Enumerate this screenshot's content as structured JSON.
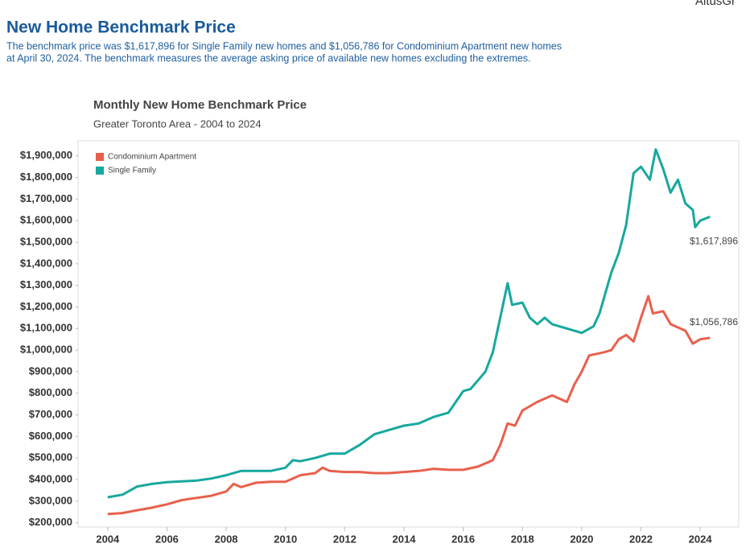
{
  "header": {
    "title": "New Home Benchmark Price",
    "description": [
      "The benchmark price was $1,617,896 for Single Family new homes and $1,056,786 for Condominium Apartment new homes",
      "at April 30, 2024. The benchmark measures the average asking price of available new homes excluding the extremes."
    ]
  },
  "logo": "AltusGr",
  "chart_data": {
    "type": "line",
    "title": "Monthly New Home Benchmark Price",
    "subtitle": "Greater Toronto Area - 2004 to 2024",
    "legend": "top-left",
    "xlim": [
      2003,
      2025.3
    ],
    "xticks": [
      2004,
      2006,
      2008,
      2010,
      2012,
      2014,
      2016,
      2018,
      2020,
      2022,
      2024
    ],
    "ylim": [
      180000,
      1970000
    ],
    "yticks": [
      {
        "value": 200000,
        "label": "$200,000"
      },
      {
        "value": 300000,
        "label": "$300,000"
      },
      {
        "value": 400000,
        "label": "$400,000"
      },
      {
        "value": 500000,
        "label": "$500,000"
      },
      {
        "value": 600000,
        "label": "$600,000"
      },
      {
        "value": 700000,
        "label": "$700,000"
      },
      {
        "value": 800000,
        "label": "$800,000"
      },
      {
        "value": 900000,
        "label": "$900,000"
      },
      {
        "value": 1000000,
        "label": "$1,000,000"
      },
      {
        "value": 1100000,
        "label": "$1,100,000"
      },
      {
        "value": 1200000,
        "label": "$1,200,000"
      },
      {
        "value": 1300000,
        "label": "$1,300,000"
      },
      {
        "value": 1400000,
        "label": "$1,400,000"
      },
      {
        "value": 1500000,
        "label": "$1,500,000"
      },
      {
        "value": 1600000,
        "label": "$1,600,000"
      },
      {
        "value": 1700000,
        "label": "$1,700,000"
      },
      {
        "value": 1800000,
        "label": "$1,800,000"
      },
      {
        "value": 1900000,
        "label": "$1,900,000"
      }
    ],
    "series": [
      {
        "name": "Condominium Apartment",
        "color": "#e8604c",
        "x": [
          2004,
          2004.5,
          2005,
          2005.5,
          2006,
          2006.5,
          2007,
          2007.5,
          2008,
          2008.25,
          2008.5,
          2009,
          2009.5,
          2010,
          2010.5,
          2011,
          2011.25,
          2011.5,
          2012,
          2012.5,
          2013,
          2013.5,
          2014,
          2014.5,
          2015,
          2015.5,
          2016,
          2016.5,
          2017,
          2017.25,
          2017.5,
          2017.75,
          2018,
          2018.5,
          2019,
          2019.5,
          2019.75,
          2020,
          2020.25,
          2020.75,
          2021,
          2021.25,
          2021.5,
          2021.75,
          2022,
          2022.25,
          2022.4,
          2022.75,
          2023,
          2023.5,
          2023.75,
          2024,
          2024.33
        ],
        "values": [
          240000,
          245000,
          258000,
          270000,
          285000,
          305000,
          315000,
          325000,
          345000,
          380000,
          365000,
          385000,
          390000,
          390000,
          420000,
          430000,
          455000,
          440000,
          435000,
          435000,
          430000,
          430000,
          435000,
          440000,
          450000,
          445000,
          445000,
          460000,
          490000,
          560000,
          660000,
          650000,
          720000,
          760000,
          790000,
          760000,
          840000,
          900000,
          975000,
          990000,
          1000000,
          1050000,
          1070000,
          1040000,
          1150000,
          1250000,
          1170000,
          1180000,
          1120000,
          1090000,
          1030000,
          1050000,
          1056786
        ],
        "value_labels": [
          null,
          null,
          null,
          null,
          null,
          null,
          null,
          null,
          null,
          null,
          null,
          null,
          null,
          null,
          null,
          null,
          null,
          null,
          null,
          null,
          null,
          null,
          null,
          null,
          null,
          null,
          null,
          null,
          null,
          null,
          null,
          null,
          null,
          null,
          null,
          null,
          null,
          null,
          null,
          null,
          null,
          null,
          null,
          null,
          null,
          null,
          null,
          null,
          null,
          null,
          null,
          null,
          "$1,056,786"
        ]
      },
      {
        "name": "Single Family",
        "color": "#17a89e",
        "x": [
          2004,
          2004.5,
          2005,
          2005.5,
          2006,
          2006.5,
          2007,
          2007.5,
          2008,
          2008.5,
          2009,
          2009.5,
          2010,
          2010.25,
          2010.5,
          2011,
          2011.5,
          2012,
          2012.5,
          2013,
          2013.5,
          2014,
          2014.5,
          2015,
          2015.5,
          2015.75,
          2016,
          2016.25,
          2016.5,
          2016.75,
          2017,
          2017.25,
          2017.5,
          2017.65,
          2018,
          2018.25,
          2018.5,
          2018.75,
          2019,
          2019.5,
          2020,
          2020.4,
          2020.6,
          2021,
          2021.25,
          2021.5,
          2021.75,
          2022,
          2022.3,
          2022.5,
          2022.75,
          2023,
          2023.25,
          2023.5,
          2023.75,
          2023.83,
          2024,
          2024.33
        ],
        "values": [
          318000,
          330000,
          368000,
          380000,
          388000,
          392000,
          395000,
          405000,
          420000,
          440000,
          440000,
          440000,
          455000,
          490000,
          485000,
          500000,
          520000,
          520000,
          560000,
          610000,
          630000,
          650000,
          660000,
          690000,
          710000,
          760000,
          810000,
          820000,
          860000,
          900000,
          990000,
          1150000,
          1310000,
          1210000,
          1220000,
          1150000,
          1120000,
          1150000,
          1120000,
          1100000,
          1080000,
          1110000,
          1170000,
          1360000,
          1450000,
          1580000,
          1820000,
          1850000,
          1790000,
          1930000,
          1840000,
          1730000,
          1790000,
          1680000,
          1650000,
          1570000,
          1600000,
          1617896
        ],
        "value_labels": [
          null,
          null,
          null,
          null,
          null,
          null,
          null,
          null,
          null,
          null,
          null,
          null,
          null,
          null,
          null,
          null,
          null,
          null,
          null,
          null,
          null,
          null,
          null,
          null,
          null,
          null,
          null,
          null,
          null,
          null,
          null,
          null,
          null,
          null,
          null,
          null,
          null,
          null,
          null,
          null,
          null,
          null,
          null,
          null,
          null,
          null,
          null,
          null,
          null,
          null,
          null,
          null,
          null,
          null,
          null,
          null,
          null,
          "$1,617,896"
        ]
      }
    ]
  }
}
